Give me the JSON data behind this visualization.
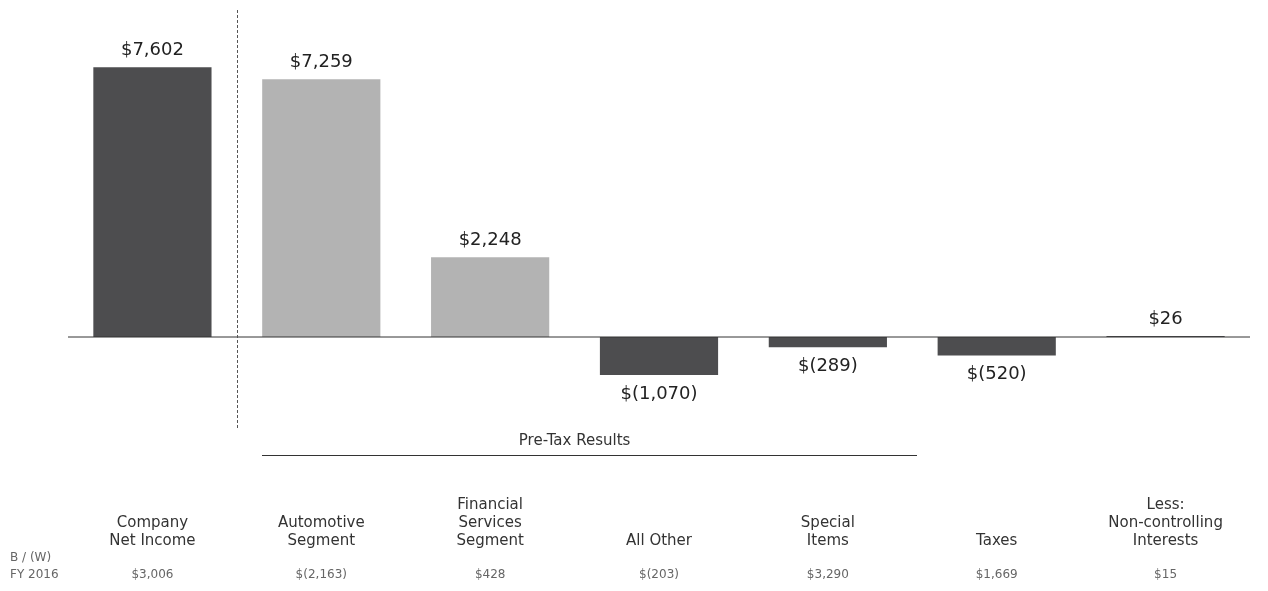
{
  "chart_data": {
    "type": "bar",
    "categories": [
      "Company\nNet Income",
      "Automotive\nSegment",
      "Financial\nServices\nSegment",
      "All Other",
      "Special\nItems",
      "Taxes",
      "Less:\nNon-controlling\nInterests"
    ],
    "values": [
      7602,
      7259,
      2248,
      -1070,
      -289,
      -520,
      26
    ],
    "colors": [
      "#4d4d4f",
      "#b3b3b3",
      "#b3b3b3",
      "#4d4d4f",
      "#4d4d4f",
      "#4d4d4f",
      "#4d4d4f"
    ],
    "value_labels": [
      "$7,602",
      "$7,259",
      "$2,248",
      "$(1,070)",
      "$(289)",
      "$(520)",
      "$26"
    ],
    "annotations": [
      "Pre-Tax Results",
      "B / (W)",
      "FY 2016",
      "$3,006",
      "$(2,163)",
      "$428",
      "$(203)",
      "$3,290",
      "$1,669",
      "$15"
    ],
    "legend": false
  }
}
